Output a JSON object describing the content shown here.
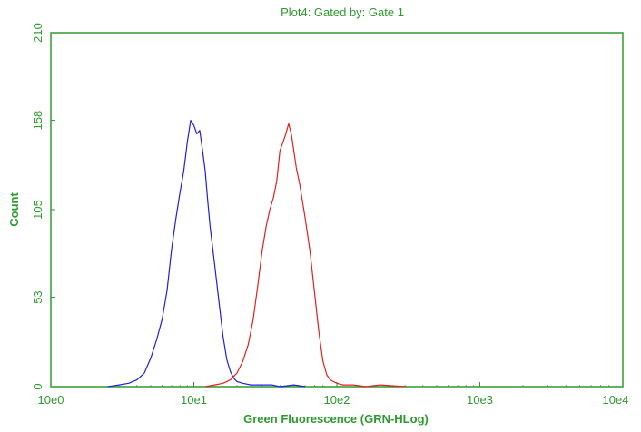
{
  "chart_data": {
    "type": "line",
    "title": "Plot4:  Gated by: Gate 1",
    "xlabel": "Green Fluorescence (GRN-HLog)",
    "ylabel": "Count",
    "x_scale": "log",
    "xlim": [
      1,
      10000
    ],
    "ylim": [
      0,
      210
    ],
    "x_ticks": [
      1,
      10,
      100,
      1000,
      10000
    ],
    "x_tick_labels": [
      "10e0",
      "10e1",
      "10e2",
      "10e3",
      "10e4"
    ],
    "y_ticks": [
      0,
      53,
      105,
      158,
      210
    ],
    "y_tick_labels": [
      "0",
      "53",
      "105",
      "158",
      "210"
    ],
    "grid": false,
    "axis_color": "#2e9a2e",
    "series": [
      {
        "color": "#1f1fe0",
        "x": [
          2.5,
          3.0,
          3.5,
          4.0,
          4.5,
          5.0,
          5.5,
          6.0,
          6.5,
          7.0,
          7.5,
          8.0,
          8.5,
          9.0,
          9.5,
          10.0,
          10.5,
          11.0,
          11.5,
          12.0,
          12.5,
          13.0,
          14.0,
          15.0,
          16.0,
          17.0,
          18.0,
          19.0,
          20.0,
          22.0,
          25.0,
          30.0,
          35.0,
          40.0,
          50.0,
          60.0
        ],
        "y": [
          0,
          1,
          2,
          4,
          8,
          17,
          28,
          40,
          57,
          82,
          100,
          115,
          128,
          145,
          158,
          155,
          150,
          152,
          140,
          128,
          110,
          95,
          72,
          50,
          30,
          16,
          9,
          5,
          3,
          2,
          1,
          1,
          1,
          0,
          1,
          0
        ]
      },
      {
        "color": "#e02020",
        "x": [
          12,
          14,
          16,
          18,
          20,
          22,
          24,
          26,
          28,
          30,
          32,
          34,
          36,
          38,
          40,
          42,
          44,
          46,
          48,
          50,
          52,
          55,
          58,
          60,
          65,
          70,
          75,
          80,
          85,
          90,
          100,
          110,
          130,
          160,
          200,
          300
        ],
        "y": [
          0,
          1,
          2,
          4,
          8,
          15,
          25,
          40,
          60,
          80,
          95,
          105,
          112,
          122,
          140,
          145,
          150,
          156,
          150,
          140,
          130,
          120,
          108,
          100,
          80,
          55,
          32,
          15,
          7,
          4,
          2,
          1,
          1,
          0,
          1,
          0
        ]
      }
    ]
  }
}
